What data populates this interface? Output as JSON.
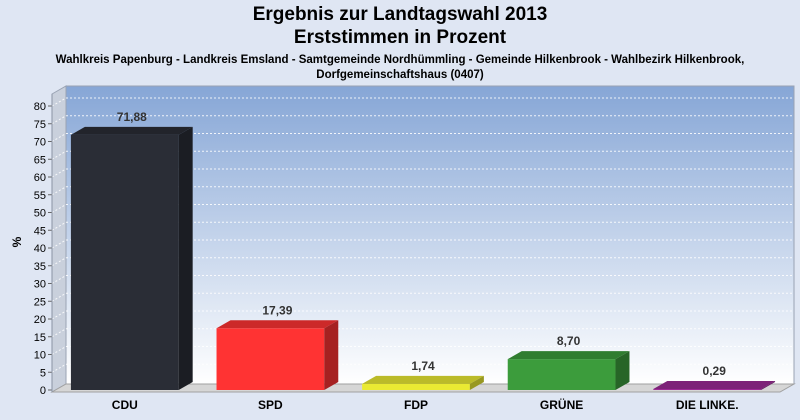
{
  "title": "Ergebnis zur Landtagswahl 2013",
  "subtitle_line1": "Erststimmen in Prozent",
  "subtitle_line2": "Wahlkreis Papenburg - Landkreis Emsland - Samtgemeinde Nordhümmling - Gemeinde Hilkenbrook - Wahlbezirk Hilkenbrook, Dorfgemeinschaftshaus (0407)",
  "chart_data": {
    "type": "bar",
    "title": "Ergebnis zur Landtagswahl 2013",
    "subtitle": "Erststimmen in Prozent",
    "xlabel": "",
    "ylabel": "%",
    "ylim": [
      0,
      80
    ],
    "ytick_step": 5,
    "grid": true,
    "categories": [
      "CDU",
      "SPD",
      "FDP",
      "GRÜNE",
      "DIE LINKE."
    ],
    "values": [
      71.88,
      17.39,
      1.74,
      8.7,
      0.29
    ],
    "value_labels": [
      "71,88",
      "17,39",
      "1,74",
      "8,70",
      "0,29"
    ],
    "colors": [
      "#2a2d36",
      "#ff3333",
      "#eaea33",
      "#3c9c3c",
      "#9c2a96"
    ]
  }
}
